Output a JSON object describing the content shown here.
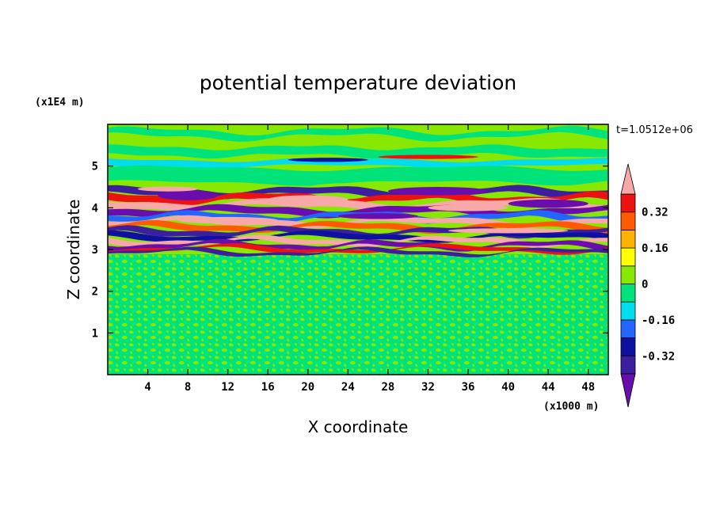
{
  "chart_data": {
    "type": "heatmap",
    "title": "potential temperature deviation",
    "xlabel": "X coordinate",
    "ylabel": "Z coordinate",
    "x_unit": "(x1000 m)",
    "y_unit": "(x1E4 m)",
    "time_label": "t=1.0512e+06",
    "xlim": [
      0,
      50
    ],
    "ylim": [
      0,
      6
    ],
    "x_ticks": [
      "4",
      "8",
      "12",
      "16",
      "20",
      "24",
      "28",
      "32",
      "36",
      "40",
      "44",
      "48"
    ],
    "y_ticks": [
      "1",
      "2",
      "3",
      "4",
      "5"
    ],
    "colorbar": {
      "level_labels": [
        "0.32",
        "0.16",
        "0",
        "-0.16",
        "-0.32"
      ],
      "levels": [
        -0.4,
        -0.32,
        -0.24,
        -0.16,
        -0.08,
        0,
        0.08,
        0.16,
        0.24,
        0.32,
        0.4
      ],
      "colors": [
        "#6a0dad",
        "#3c1f9e",
        "#1010a0",
        "#2266ff",
        "#00ddee",
        "#00e37a",
        "#88e800",
        "#ffff00",
        "#ffb300",
        "#ff5a00",
        "#ee1111",
        "#f8a8a8"
      ]
    },
    "grid": false
  }
}
